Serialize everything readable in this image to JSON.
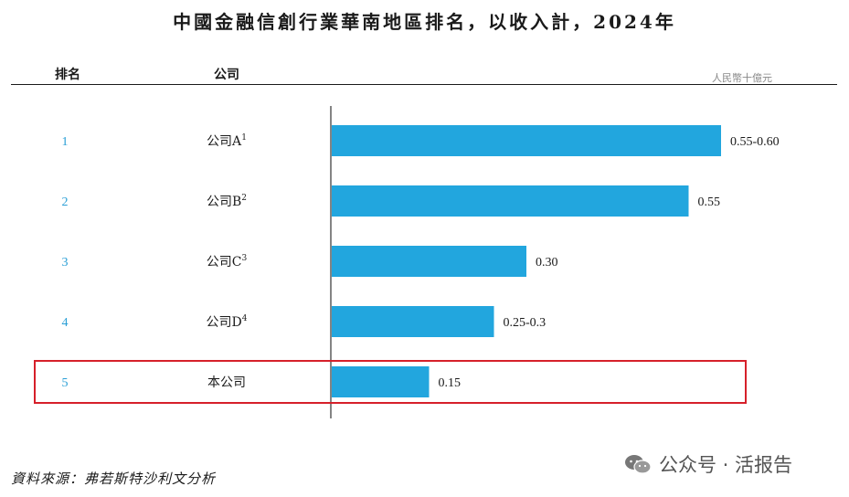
{
  "chart_data": {
    "type": "bar",
    "title": "中國金融信創行業華南地區排名，以收入計，2024年",
    "columns": {
      "rank": "排名",
      "company": "公司"
    },
    "unit": "人民幣十億元",
    "rows": [
      {
        "rank": "1",
        "company": "公司A",
        "sup": "1",
        "value": 0.6,
        "label": "0.55-0.60"
      },
      {
        "rank": "2",
        "company": "公司B",
        "sup": "2",
        "value": 0.55,
        "label": "0.55"
      },
      {
        "rank": "3",
        "company": "公司C",
        "sup": "3",
        "value": 0.3,
        "label": "0.30"
      },
      {
        "rank": "4",
        "company": "公司D",
        "sup": "4",
        "value": 0.25,
        "label": "0.25-0.3"
      },
      {
        "rank": "5",
        "company": "本公司",
        "sup": "",
        "value": 0.15,
        "label": "0.15",
        "highlight": true
      }
    ],
    "xlim": [
      0,
      0.6
    ],
    "orientation": "horizontal"
  },
  "footer": {
    "source": "資料來源：弗若斯特沙利文分析"
  },
  "watermark": {
    "text": "公众号 · 活报告",
    "icon": "wechat-icon"
  },
  "colors": {
    "bar": "#22a6de",
    "highlight_box": "#d6202a",
    "rank": "#2a9fd6"
  }
}
